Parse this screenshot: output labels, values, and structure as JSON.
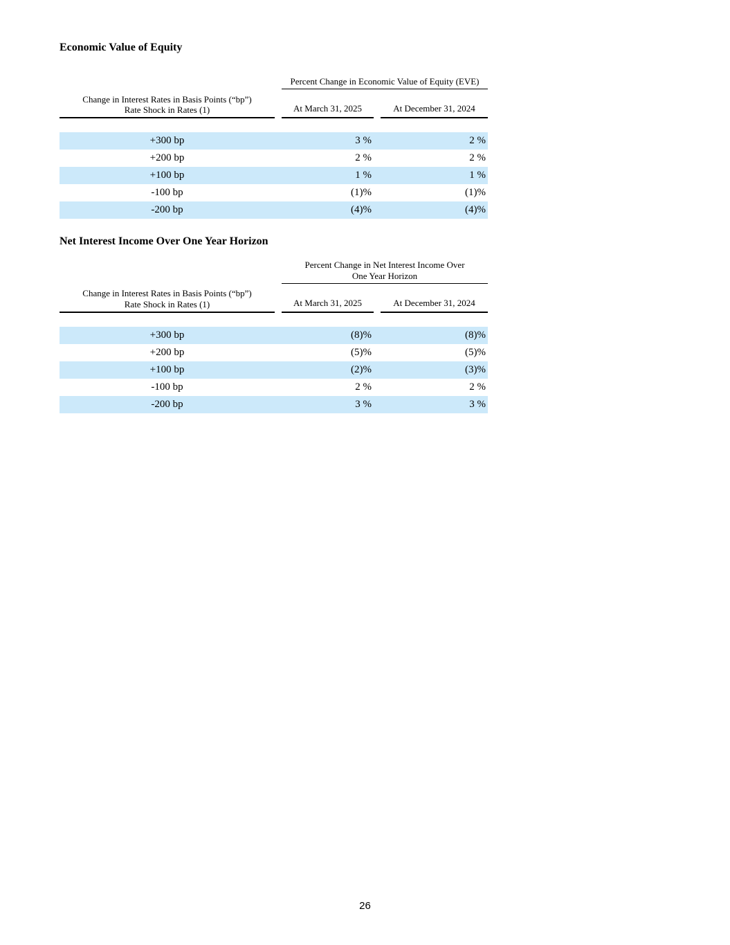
{
  "page_number": "26",
  "colors": {
    "row_highlight": "#cce9fa"
  },
  "sections": [
    {
      "heading": "Economic Value of Equity",
      "table": {
        "span_header_lines": [
          "Percent Change in Economic Value of Equity (EVE)"
        ],
        "stub_header_line1": "Change in Interest Rates in Basis Points (“bp”)",
        "stub_header_line2": "Rate Shock in Rates (1)",
        "col_headers": [
          "At March 31, 2025",
          "At December 31, 2024"
        ],
        "rows": [
          {
            "label": "+300 bp",
            "values": [
              "3 %",
              "2 %"
            ]
          },
          {
            "label": "+200 bp",
            "values": [
              "2 %",
              "2 %"
            ]
          },
          {
            "label": "+100 bp",
            "values": [
              "1 %",
              "1 %"
            ]
          },
          {
            "label": "-100 bp",
            "values": [
              "(1)%",
              "(1)%"
            ]
          },
          {
            "label": "-200 bp",
            "values": [
              "(4)%",
              "(4)%"
            ]
          }
        ]
      }
    },
    {
      "heading": "Net Interest Income Over One Year Horizon",
      "table": {
        "span_header_lines": [
          "Percent Change in Net Interest Income Over",
          "One Year Horizon"
        ],
        "stub_header_line1": "Change in Interest Rates in Basis Points (“bp”)",
        "stub_header_line2": "Rate Shock in Rates (1)",
        "col_headers": [
          "At March 31, 2025",
          "At December 31, 2024"
        ],
        "rows": [
          {
            "label": "+300 bp",
            "values": [
              "(8)%",
              "(8)%"
            ]
          },
          {
            "label": "+200 bp",
            "values": [
              "(5)%",
              "(5)%"
            ]
          },
          {
            "label": "+100 bp",
            "values": [
              "(2)%",
              "(3)%"
            ]
          },
          {
            "label": "-100 bp",
            "values": [
              "2 %",
              "2 %"
            ]
          },
          {
            "label": "-200 bp",
            "values": [
              "3 %",
              "3 %"
            ]
          }
        ]
      }
    }
  ]
}
